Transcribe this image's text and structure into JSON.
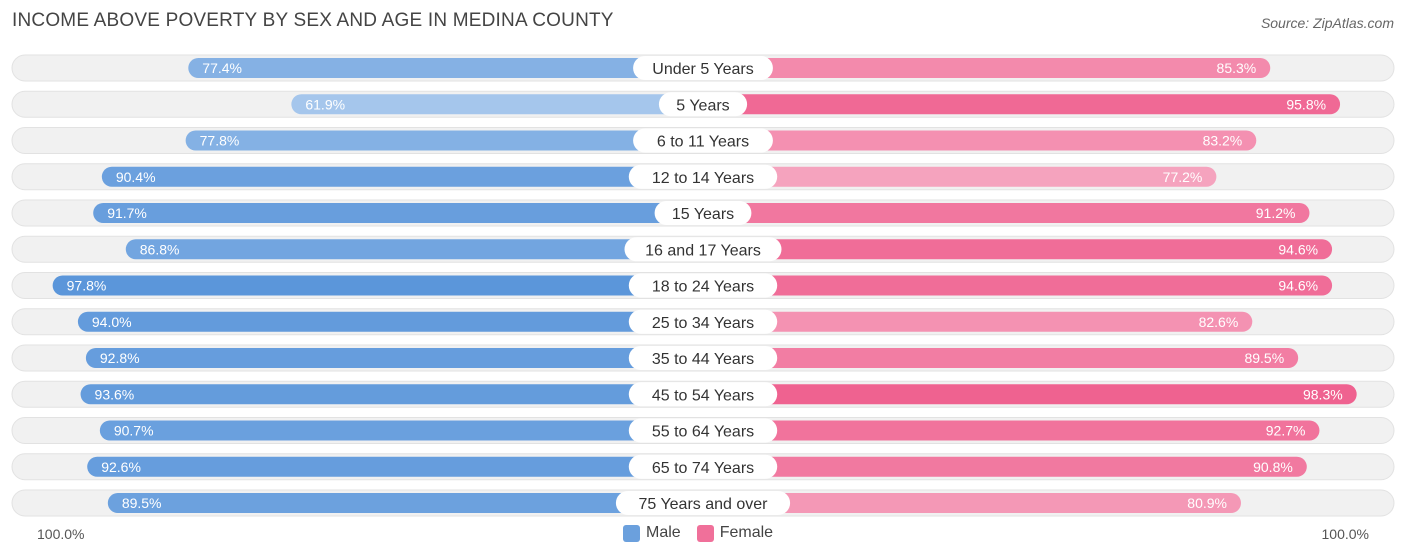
{
  "title": "INCOME ABOVE POVERTY BY SEX AND AGE IN MEDINA COUNTY",
  "source": "Source: ZipAtlas.com",
  "axis": {
    "left_label": "100.0%",
    "right_label": "100.0%"
  },
  "legend": [
    {
      "label": "Male",
      "color": "#6ba0dd"
    },
    {
      "label": "Female",
      "color": "#f0709a"
    }
  ],
  "chart_data": {
    "type": "bar",
    "orientation": "horizontal-diverging",
    "title": "INCOME ABOVE POVERTY BY SEX AND AGE IN MEDINA COUNTY",
    "xlim": [
      0,
      100
    ],
    "unit": "%",
    "categories": [
      "Under 5 Years",
      "5 Years",
      "6 to 11 Years",
      "12 to 14 Years",
      "15 Years",
      "16 and 17 Years",
      "18 to 24 Years",
      "25 to 34 Years",
      "35 to 44 Years",
      "45 to 54 Years",
      "55 to 64 Years",
      "65 to 74 Years",
      "75 Years and over"
    ],
    "series": [
      {
        "name": "Male",
        "color": "#6ba0dd",
        "values": [
          77.4,
          61.9,
          77.8,
          90.4,
          91.7,
          86.8,
          97.8,
          94.0,
          92.8,
          93.6,
          90.7,
          92.6,
          89.5
        ],
        "labels": [
          "77.4%",
          "61.9%",
          "77.8%",
          "90.4%",
          "91.7%",
          "86.8%",
          "97.8%",
          "94.0%",
          "92.8%",
          "93.6%",
          "90.7%",
          "92.6%",
          "89.5%"
        ]
      },
      {
        "name": "Female",
        "color": "#f0709a",
        "values": [
          85.3,
          95.8,
          83.2,
          77.2,
          91.2,
          94.6,
          94.6,
          82.6,
          89.5,
          98.3,
          92.7,
          90.8,
          80.9
        ],
        "labels": [
          "85.3%",
          "95.8%",
          "83.2%",
          "77.2%",
          "91.2%",
          "94.6%",
          "94.6%",
          "82.6%",
          "89.5%",
          "98.3%",
          "92.7%",
          "90.8%",
          "80.9%"
        ]
      }
    ]
  }
}
